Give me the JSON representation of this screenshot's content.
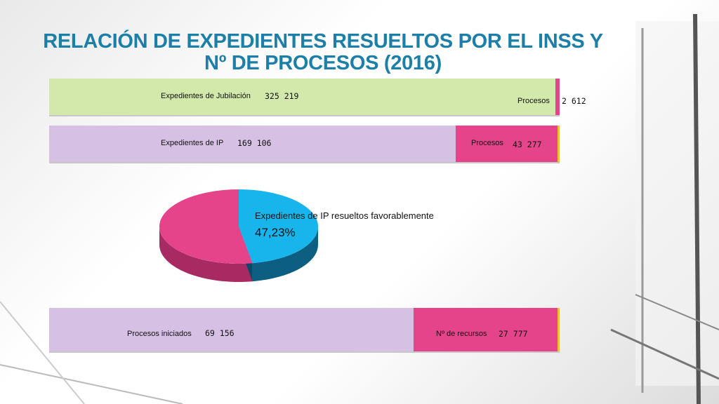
{
  "title": "RELACIÓN DE EXPEDIENTES RESUELTOS POR EL INSS Y Nº DE PROCESOS (2016)",
  "colors": {
    "green": "#d3e9ab",
    "lilac": "#d6c0e4",
    "pink": "#e6448a",
    "cyan": "#18b4ec",
    "title": "#1b7fa7"
  },
  "chart_data": [
    {
      "type": "bar",
      "orientation": "horizontal-stacked",
      "series": [
        {
          "label": "Expedientes de Jubilación",
          "value_text": "325 219",
          "value": 325219
        },
        {
          "label": "Procesos",
          "value_text": "2 612",
          "value": 2612
        }
      ]
    },
    {
      "type": "bar",
      "orientation": "horizontal-stacked",
      "series": [
        {
          "label": "Expedientes de IP",
          "value_text": "169 106",
          "value": 169106
        },
        {
          "label": "Procesos",
          "value_text": "43 277",
          "value": 43277
        }
      ]
    },
    {
      "type": "pie",
      "slices": [
        {
          "label": "Expedientes de IP resueltos favorablemente",
          "value_text": "47,23%",
          "value": 47.23
        },
        {
          "label": "",
          "value": 52.77
        }
      ]
    },
    {
      "type": "bar",
      "orientation": "horizontal-stacked",
      "series": [
        {
          "label": "Procesos iniciados",
          "value_text": "69 156",
          "value": 69156
        },
        {
          "label": "Nº de recursos",
          "value_text": "27 777",
          "value": 27777
        }
      ]
    }
  ]
}
